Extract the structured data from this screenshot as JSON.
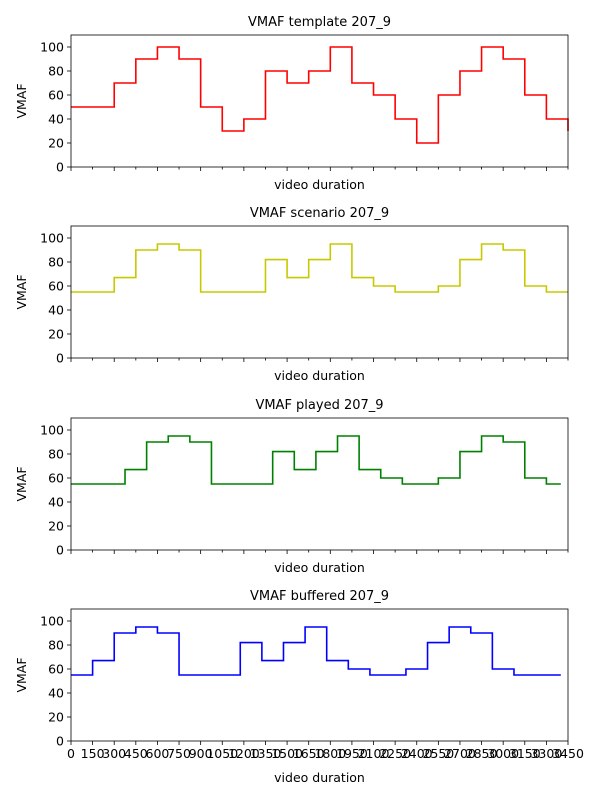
{
  "chart_data": [
    {
      "type": "line",
      "step": "post",
      "title": "VMAF template 207_9",
      "xlabel": "video duration",
      "ylabel": "VMAF",
      "color": "#ff0000",
      "xlim": [
        0,
        3450
      ],
      "ylim": [
        0,
        110
      ],
      "yticks": [
        "0",
        "20",
        "40",
        "60",
        "80",
        "100"
      ],
      "xticklabels": [],
      "x": [
        0,
        300,
        450,
        600,
        750,
        900,
        1050,
        1200,
        1350,
        1500,
        1650,
        1800,
        1950,
        2100,
        2250,
        2400,
        2550,
        2700,
        2850,
        3000,
        3150,
        3300,
        3450
      ],
      "values": [
        50,
        70,
        90,
        100,
        90,
        50,
        30,
        40,
        80,
        70,
        80,
        100,
        70,
        60,
        40,
        20,
        60,
        80,
        100,
        90,
        60,
        40,
        30
      ]
    },
    {
      "type": "line",
      "step": "post",
      "title": "VMAF scenario 207_9",
      "xlabel": "video duration",
      "ylabel": "VMAF",
      "color": "#c8c800",
      "xlim": [
        0,
        3450
      ],
      "ylim": [
        0,
        110
      ],
      "yticks": [
        "0",
        "20",
        "40",
        "60",
        "80",
        "100"
      ],
      "xticklabels": [],
      "x": [
        0,
        300,
        450,
        600,
        750,
        900,
        1350,
        1500,
        1650,
        1800,
        1950,
        2100,
        2250,
        2550,
        2700,
        2850,
        3000,
        3150,
        3300,
        3450
      ],
      "values": [
        55,
        67,
        90,
        95,
        90,
        55,
        82,
        67,
        82,
        95,
        67,
        60,
        55,
        60,
        82,
        95,
        90,
        60,
        55,
        55
      ]
    },
    {
      "type": "line",
      "step": "post",
      "title": "VMAF played 207_9",
      "xlabel": "video duration",
      "ylabel": "VMAF",
      "color": "#008000",
      "xlim": [
        0,
        3450
      ],
      "ylim": [
        0,
        110
      ],
      "yticks": [
        "0",
        "20",
        "40",
        "60",
        "80",
        "100"
      ],
      "xticklabels": [],
      "x": [
        0,
        375,
        525,
        675,
        825,
        975,
        1400,
        1550,
        1700,
        1850,
        2000,
        2150,
        2300,
        2550,
        2700,
        2850,
        3000,
        3150,
        3300,
        3400
      ],
      "values": [
        55,
        67,
        90,
        95,
        90,
        55,
        82,
        67,
        82,
        95,
        67,
        60,
        55,
        60,
        82,
        95,
        90,
        60,
        55,
        55
      ]
    },
    {
      "type": "line",
      "step": "post",
      "title": "VMAF buffered 207_9",
      "xlabel": "video duration",
      "ylabel": "VMAF",
      "color": "#0000ff",
      "xlim": [
        0,
        3450
      ],
      "ylim": [
        0,
        110
      ],
      "yticks": [
        "0",
        "20",
        "40",
        "60",
        "80",
        "100"
      ],
      "xticks": [
        0,
        150,
        300,
        450,
        600,
        750,
        900,
        1050,
        1200,
        1350,
        1500,
        1650,
        1800,
        1950,
        2100,
        2250,
        2400,
        2550,
        2700,
        2850,
        3000,
        3150,
        3300,
        3450
      ],
      "xticklabels": [
        "0",
        "150",
        "300",
        "450",
        "600",
        "750",
        "900",
        "1050",
        "1200",
        "1350",
        "1500",
        "1650",
        "1800",
        "1950",
        "2100",
        "2250",
        "2400",
        "2550",
        "2700",
        "2850",
        "3000",
        "3150",
        "3300",
        "3450"
      ],
      "x": [
        0,
        150,
        300,
        450,
        600,
        750,
        1175,
        1325,
        1475,
        1625,
        1775,
        1925,
        2075,
        2325,
        2475,
        2625,
        2775,
        2925,
        3075,
        3400
      ],
      "values": [
        55,
        67,
        90,
        95,
        90,
        55,
        82,
        67,
        82,
        95,
        67,
        60,
        55,
        60,
        82,
        95,
        90,
        60,
        55,
        55
      ]
    }
  ]
}
